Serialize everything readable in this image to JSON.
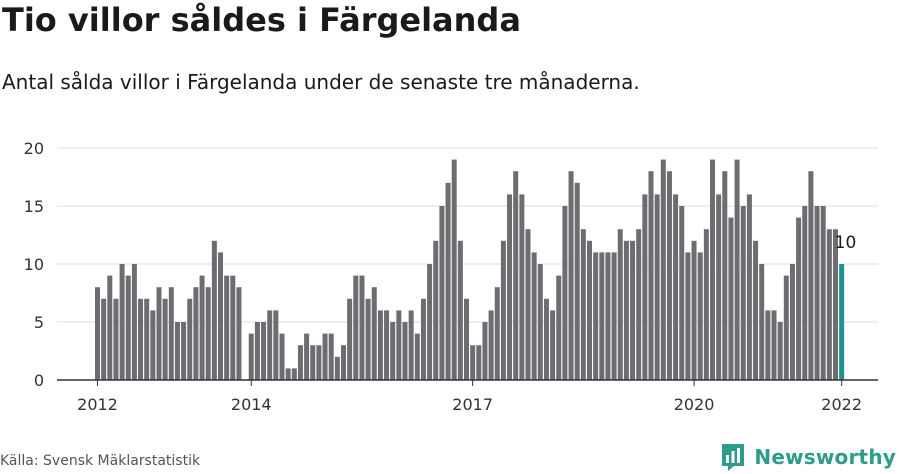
{
  "title": "Tio villor såldes i Färgelanda",
  "subtitle": "Antal sålda villor i Färgelanda under de senaste tre månaderna.",
  "source": "Källa: Svensk Mäklarstatistik",
  "brand": {
    "name": "Newsworthy",
    "icon": "bar-chart-logo-icon"
  },
  "colors": {
    "bar": "#6d6c71",
    "highlight": "#18968f",
    "grid": "#dddddd",
    "axis": "#333333",
    "brand": "#2a9d8f"
  },
  "chart_data": {
    "type": "bar",
    "title": "Tio villor såldes i Färgelanda",
    "xlabel": "",
    "ylabel": "",
    "ylim": [
      0,
      20
    ],
    "yticks": [
      0,
      5,
      10,
      15,
      20
    ],
    "grid": true,
    "x_tick_labels": [
      {
        "label": "2012",
        "index": 0
      },
      {
        "label": "2014",
        "index": 25
      },
      {
        "label": "2017",
        "index": 61
      },
      {
        "label": "2020",
        "index": 97
      },
      {
        "label": "2022",
        "index": 121
      }
    ],
    "values": [
      8,
      7,
      9,
      7,
      10,
      9,
      10,
      7,
      7,
      6,
      8,
      7,
      8,
      5,
      5,
      7,
      8,
      9,
      8,
      12,
      11,
      9,
      9,
      8,
      0,
      4,
      5,
      5,
      6,
      6,
      4,
      1,
      1,
      3,
      4,
      3,
      3,
      4,
      4,
      2,
      3,
      7,
      9,
      9,
      7,
      8,
      6,
      6,
      5,
      6,
      5,
      6,
      4,
      7,
      10,
      12,
      15,
      17,
      19,
      12,
      7,
      3,
      3,
      5,
      6,
      8,
      12,
      16,
      18,
      16,
      13,
      11,
      10,
      7,
      6,
      9,
      15,
      18,
      17,
      13,
      12,
      11,
      11,
      11,
      11,
      13,
      12,
      12,
      13,
      16,
      18,
      16,
      19,
      18,
      16,
      15,
      11,
      12,
      11,
      13,
      19,
      16,
      18,
      14,
      19,
      15,
      16,
      12,
      10,
      6,
      6,
      5,
      9,
      10,
      14,
      15,
      18,
      15,
      15,
      13,
      13,
      10
    ],
    "highlight_index": 121,
    "annotation": {
      "index": 121,
      "label": "10"
    }
  }
}
